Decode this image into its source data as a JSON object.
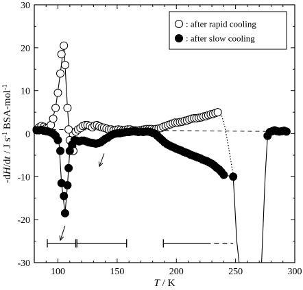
{
  "chart_data": {
    "type": "scatter",
    "xlabel_var": "T",
    "xlabel_unit": "K",
    "ylabel_parts": [
      "-d",
      "H",
      "/d",
      "t",
      " / J s",
      "-1",
      " BSA-mol",
      "-1"
    ],
    "xlim": [
      80,
      300
    ],
    "ylim": [
      -30,
      30
    ],
    "xticks": [
      100,
      150,
      200,
      250,
      300
    ],
    "yticks": [
      -30,
      -20,
      -10,
      0,
      10,
      20,
      30
    ],
    "grid": false,
    "legend_position": "top-right",
    "legend": [
      {
        "marker": "open-circle",
        "label": ": after rapid cooling"
      },
      {
        "marker": "filled-circle",
        "label": ": after slow cooling"
      }
    ],
    "series": [
      {
        "marker": "open-circle",
        "points": [
          [
            82,
            1.0
          ],
          [
            84,
            1.5
          ],
          [
            86,
            1.8
          ],
          [
            88,
            1.6
          ],
          [
            90,
            1.3
          ],
          [
            92,
            1.4
          ],
          [
            94,
            2.0
          ],
          [
            96,
            3.5
          ],
          [
            98,
            6.0
          ],
          [
            100,
            9.5
          ],
          [
            102,
            14.0
          ],
          [
            103,
            18.5
          ],
          [
            105,
            20.5
          ],
          [
            106,
            16.0
          ],
          [
            108,
            6.0
          ],
          [
            109,
            1.0
          ],
          [
            110,
            -1.5
          ],
          [
            112,
            -3.0
          ],
          [
            113,
            -4.0
          ],
          [
            115,
            0.5
          ],
          [
            117,
            1.0
          ],
          [
            119,
            1.3
          ],
          [
            121,
            1.8
          ],
          [
            123,
            2.0
          ],
          [
            125,
            2.0
          ],
          [
            127,
            1.8
          ],
          [
            129,
            1.5
          ],
          [
            131,
            1.9
          ],
          [
            133,
            2.0
          ],
          [
            135,
            1.7
          ],
          [
            137,
            1.5
          ],
          [
            139,
            1.4
          ],
          [
            141,
            1.2
          ],
          [
            143,
            1.0
          ],
          [
            145,
            1.0
          ],
          [
            147,
            0.8
          ],
          [
            149,
            0.9
          ],
          [
            151,
            1.0
          ],
          [
            153,
            0.9
          ],
          [
            155,
            0.8
          ],
          [
            157,
            0.9
          ],
          [
            159,
            1.0
          ],
          [
            161,
            1.0
          ],
          [
            163,
            0.8
          ],
          [
            165,
            0.8
          ],
          [
            167,
            0.7
          ],
          [
            169,
            0.8
          ],
          [
            171,
            0.9
          ],
          [
            173,
            1.0
          ],
          [
            175,
            1.1
          ],
          [
            177,
            1.1
          ],
          [
            179,
            1.1
          ],
          [
            181,
            1.0
          ],
          [
            183,
            1.1
          ],
          [
            185,
            1.2
          ],
          [
            187,
            1.3
          ],
          [
            189,
            1.6
          ],
          [
            191,
            1.8
          ],
          [
            193,
            2.0
          ],
          [
            195,
            2.2
          ],
          [
            197,
            2.4
          ],
          [
            199,
            2.6
          ],
          [
            201,
            2.6
          ],
          [
            203,
            2.7
          ],
          [
            205,
            2.8
          ],
          [
            207,
            3.0
          ],
          [
            209,
            3.1
          ],
          [
            211,
            3.3
          ],
          [
            213,
            3.5
          ],
          [
            215,
            3.6
          ],
          [
            217,
            3.6
          ],
          [
            219,
            3.7
          ],
          [
            221,
            3.8
          ],
          [
            223,
            4.0
          ],
          [
            225,
            4.1
          ],
          [
            227,
            4.3
          ],
          [
            229,
            4.5
          ],
          [
            231,
            4.6
          ],
          [
            233,
            4.8
          ],
          [
            235,
            5.0
          ]
        ]
      },
      {
        "marker": "filled-circle",
        "points": [
          [
            82,
            0.8
          ],
          [
            84,
            0.8
          ],
          [
            86,
            0.9
          ],
          [
            88,
            0.7
          ],
          [
            90,
            0.6
          ],
          [
            92,
            0.5
          ],
          [
            94,
            0.3
          ],
          [
            96,
            0.0
          ],
          [
            98,
            -0.5
          ],
          [
            100,
            -1.5
          ],
          [
            102,
            -4.0
          ],
          [
            103,
            -11.5
          ],
          [
            105,
            -14.5
          ],
          [
            106,
            -18.5
          ],
          [
            108,
            -12.0
          ],
          [
            109,
            -8.0
          ],
          [
            110,
            -4.0
          ],
          [
            112,
            -2.5
          ],
          [
            114,
            -1.5
          ],
          [
            116,
            -1.6
          ],
          [
            118,
            -1.8
          ],
          [
            120,
            -1.6
          ],
          [
            122,
            -1.6
          ],
          [
            124,
            -1.8
          ],
          [
            126,
            -2.0
          ],
          [
            128,
            -2.1
          ],
          [
            130,
            -2.2
          ],
          [
            132,
            -2.3
          ],
          [
            134,
            -2.2
          ],
          [
            136,
            -2.0
          ],
          [
            138,
            -1.6
          ],
          [
            140,
            -1.2
          ],
          [
            142,
            -0.9
          ],
          [
            144,
            -0.5
          ],
          [
            146,
            -0.2
          ],
          [
            148,
            0.0
          ],
          [
            150,
            0.1
          ],
          [
            152,
            0.1
          ],
          [
            154,
            0.2
          ],
          [
            156,
            0.3
          ],
          [
            158,
            0.4
          ],
          [
            160,
            0.4
          ],
          [
            162,
            0.5
          ],
          [
            164,
            0.6
          ],
          [
            166,
            0.5
          ],
          [
            168,
            0.4
          ],
          [
            170,
            0.5
          ],
          [
            172,
            0.4
          ],
          [
            174,
            0.5
          ],
          [
            176,
            0.5
          ],
          [
            178,
            0.4
          ],
          [
            180,
            0.2
          ],
          [
            182,
            0.0
          ],
          [
            184,
            -0.5
          ],
          [
            186,
            -1.0
          ],
          [
            188,
            -1.5
          ],
          [
            190,
            -2.0
          ],
          [
            192,
            -2.4
          ],
          [
            194,
            -2.7
          ],
          [
            196,
            -3.0
          ],
          [
            198,
            -3.2
          ],
          [
            200,
            -3.5
          ],
          [
            202,
            -3.7
          ],
          [
            204,
            -3.9
          ],
          [
            206,
            -4.2
          ],
          [
            208,
            -4.4
          ],
          [
            210,
            -4.6
          ],
          [
            212,
            -4.9
          ],
          [
            214,
            -5.1
          ],
          [
            216,
            -5.3
          ],
          [
            218,
            -5.5
          ],
          [
            220,
            -5.7
          ],
          [
            222,
            -6.0
          ],
          [
            224,
            -6.2
          ],
          [
            226,
            -6.4
          ],
          [
            228,
            -6.7
          ],
          [
            230,
            -7.0
          ],
          [
            232,
            -7.4
          ],
          [
            234,
            -7.9
          ],
          [
            236,
            -8.3
          ],
          [
            238,
            -8.9
          ],
          [
            240,
            -9.6
          ],
          [
            248,
            -10.0
          ],
          [
            277,
            -0.5
          ],
          [
            279,
            0.4
          ],
          [
            281,
            0.6
          ],
          [
            283,
            0.8
          ],
          [
            285,
            0.6
          ],
          [
            287,
            0.5
          ],
          [
            289,
            0.6
          ],
          [
            291,
            0.7
          ],
          [
            293,
            0.5
          ]
        ]
      }
    ],
    "lines": {
      "open_solid": [
        [
          82,
          1.0
        ],
        [
          90,
          1.3
        ],
        [
          94,
          2.0
        ],
        [
          98,
          6.0
        ],
        [
          102,
          14.0
        ],
        [
          105,
          20.8
        ],
        [
          106,
          16.0
        ],
        [
          108,
          6.0
        ],
        [
          110,
          -1.5
        ],
        [
          113,
          -4.0
        ],
        [
          115,
          0.5
        ],
        [
          121,
          1.8
        ],
        [
          125,
          2.0
        ],
        [
          135,
          1.7
        ],
        [
          150,
          0.9
        ],
        [
          170,
          0.8
        ],
        [
          190,
          1.8
        ],
        [
          210,
          3.2
        ],
        [
          225,
          4.2
        ],
        [
          235,
          5.0
        ]
      ],
      "open_dotted": [
        [
          235,
          5.0
        ],
        [
          238,
          4.5
        ],
        [
          241,
          1.5
        ],
        [
          244,
          -3.0
        ],
        [
          247,
          -8.0
        ],
        [
          249,
          -11.0
        ]
      ],
      "filled_solid_a": [
        [
          82,
          0.8
        ],
        [
          92,
          0.5
        ],
        [
          98,
          -0.5
        ],
        [
          101,
          -2.5
        ],
        [
          103,
          -11.5
        ],
        [
          106,
          -18.5
        ],
        [
          108,
          -12.0
        ],
        [
          110,
          -4.0
        ],
        [
          114,
          -1.5
        ],
        [
          126,
          -2.0
        ],
        [
          132,
          -2.3
        ],
        [
          140,
          -1.2
        ],
        [
          150,
          0.1
        ],
        [
          166,
          0.5
        ],
        [
          180,
          0.2
        ],
        [
          190,
          -2.0
        ],
        [
          210,
          -4.6
        ],
        [
          230,
          -7.0
        ],
        [
          240,
          -9.6
        ],
        [
          248,
          -10.0
        ],
        [
          251,
          -25.0
        ],
        [
          253,
          -30.0
        ]
      ],
      "filled_solid_b": [
        [
          272,
          -30.0
        ],
        [
          275,
          -10.0
        ],
        [
          277,
          -0.5
        ],
        [
          280,
          0.6
        ],
        [
          287,
          0.5
        ],
        [
          293,
          0.5
        ]
      ],
      "baseline_dashed": [
        [
          82,
          1.0
        ],
        [
          293,
          0.5
        ]
      ]
    },
    "ranges": [
      {
        "from": 91,
        "to": 115,
        "y": -25.5,
        "style": "solid",
        "end_ticks": true
      },
      {
        "from": 116,
        "to": 158,
        "y": -25.5,
        "style": "solid",
        "end_ticks": true
      },
      {
        "from": 189,
        "to": 225,
        "y": -25.5,
        "style": "solid",
        "end_ticks": "start"
      },
      {
        "from": 225,
        "to": 248,
        "y": -25.5,
        "style": "dashed",
        "end_ticks": false
      }
    ],
    "arrows": [
      {
        "tail": [
          139,
          -4.6
        ],
        "head": [
          135,
          -7.6
        ]
      },
      {
        "tail": [
          106,
          -21.4
        ],
        "head": [
          102,
          -24.8
        ]
      }
    ]
  }
}
